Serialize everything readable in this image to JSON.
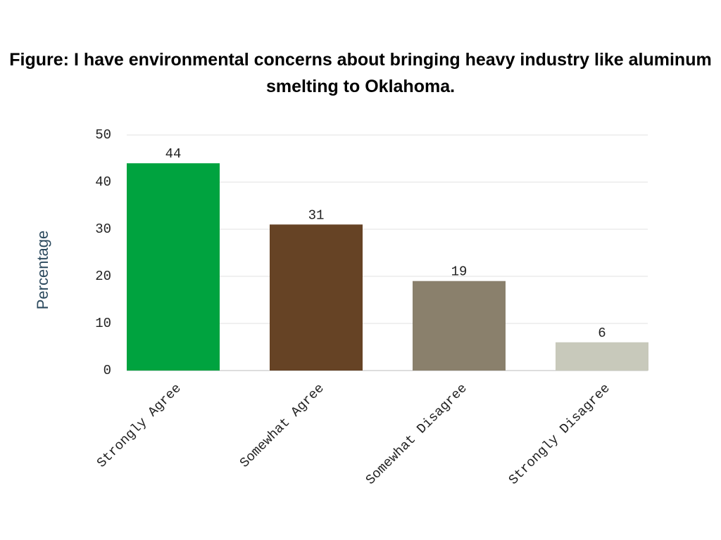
{
  "chart_data": {
    "type": "bar",
    "title": "Figure: I have environmental concerns about bringing heavy industry like aluminum smelting to Oklahoma.",
    "y_label": "Percentage",
    "categories": [
      "Strongly Agree",
      "Somewhat Agree",
      "Somewhat Disagree",
      "Strongly Disagree"
    ],
    "values": [
      44,
      31,
      19,
      6
    ],
    "colors": [
      "#00a33f",
      "#664325",
      "#8a806c",
      "#c8c9bb"
    ],
    "ylim": [
      0,
      50
    ],
    "yticks": [
      0,
      10,
      20,
      30,
      40,
      50
    ],
    "grid": true
  }
}
